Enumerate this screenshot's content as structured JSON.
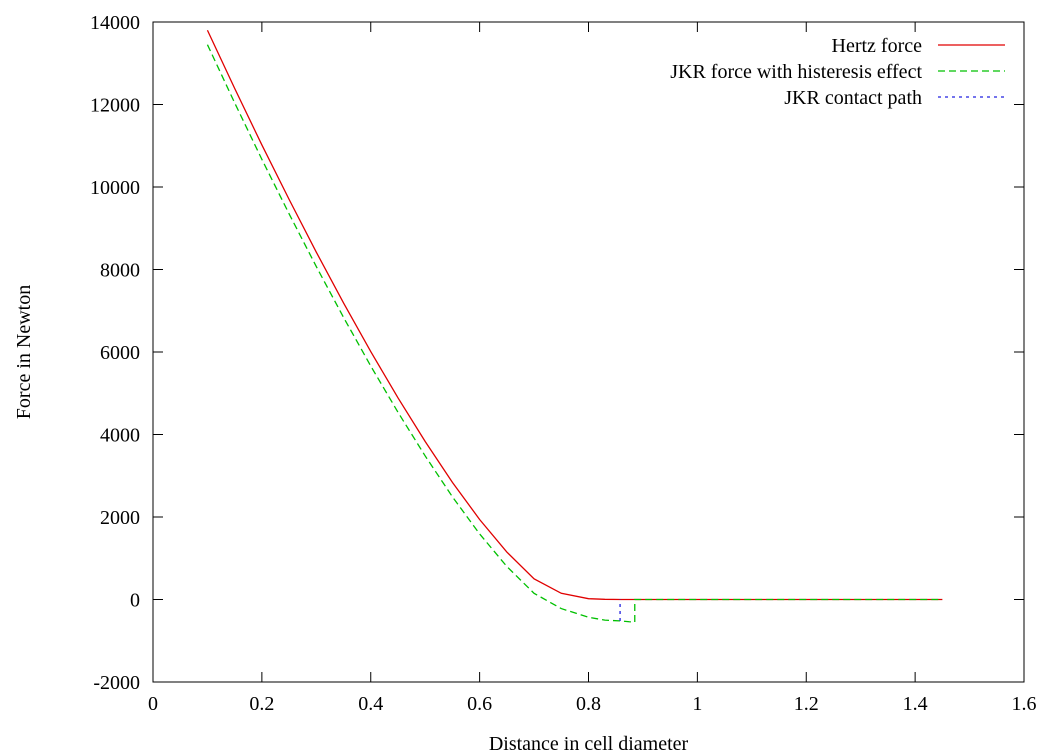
{
  "chart_data": {
    "type": "line",
    "title": "",
    "xlabel": "Distance in cell diameter",
    "ylabel": "Force in Newton",
    "xlim": [
      0,
      1.6
    ],
    "ylim": [
      -2000,
      14000
    ],
    "xticks": [
      "0",
      "0.2",
      "0.4",
      "0.6",
      "0.8",
      "1",
      "1.2",
      "1.4",
      "1.6"
    ],
    "yticks": [
      "-2000",
      "0",
      "2000",
      "4000",
      "6000",
      "8000",
      "10000",
      "12000",
      "14000"
    ],
    "grid": false,
    "legend_position": "top-right",
    "series": [
      {
        "name": "Hertz force",
        "color": "#e00000",
        "dash": "solid",
        "x": [
          0.1,
          0.15,
          0.2,
          0.25,
          0.3,
          0.35,
          0.4,
          0.45,
          0.5,
          0.55,
          0.6,
          0.65,
          0.7,
          0.75,
          0.8,
          0.83,
          0.86,
          0.9,
          1.0,
          1.1,
          1.2,
          1.3,
          1.4,
          1.45
        ],
        "y": [
          13800,
          12390,
          11020,
          9700,
          8420,
          7190,
          6010,
          4890,
          3830,
          2840,
          1940,
          1150,
          500,
          150,
          20,
          5,
          0,
          0,
          0,
          0,
          0,
          0,
          0,
          0
        ]
      },
      {
        "name": "JKR force with histeresis effect",
        "color": "#00c000",
        "dash": "dashed",
        "x": [
          0.1,
          0.15,
          0.2,
          0.25,
          0.3,
          0.35,
          0.4,
          0.45,
          0.5,
          0.55,
          0.6,
          0.65,
          0.7,
          0.75,
          0.8,
          0.83,
          0.86,
          0.875,
          0.885,
          0.885,
          0.9,
          1.0,
          1.1,
          1.2,
          1.3,
          1.4,
          1.45
        ],
        "y": [
          13450,
          12040,
          10670,
          9350,
          8070,
          6840,
          5660,
          4540,
          3480,
          2490,
          1590,
          800,
          150,
          -220,
          -430,
          -500,
          -520,
          -540,
          -550,
          0,
          0,
          0,
          0,
          0,
          0,
          0,
          0
        ]
      },
      {
        "name": "JKR contact path",
        "color": "#2020e0",
        "dash": "dotted",
        "x": [
          0.858,
          0.858
        ],
        "y": [
          -520,
          0
        ]
      }
    ]
  }
}
